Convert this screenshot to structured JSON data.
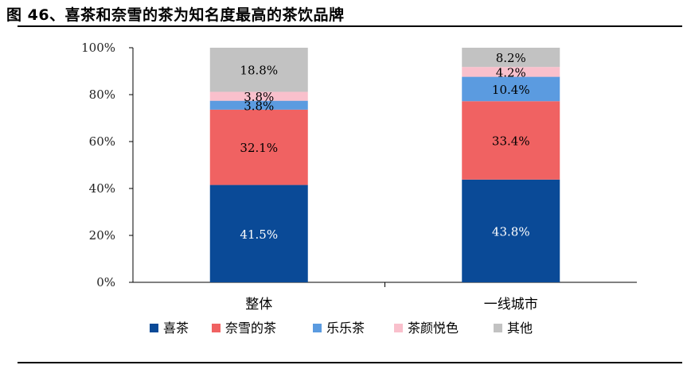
{
  "chart_data": {
    "type": "bar",
    "stacked": true,
    "title": "图 46、喜茶和奈雪的茶为知名度最高的茶饮品牌",
    "xlabel": "",
    "ylabel": "",
    "ylim": [
      0,
      100
    ],
    "y_ticks": [
      "0%",
      "20%",
      "40%",
      "60%",
      "80%",
      "100%"
    ],
    "categories": [
      "整体",
      "一线城市"
    ],
    "series": [
      {
        "name": "喜茶",
        "values": [
          41.5,
          43.8
        ],
        "labels": [
          "41.5%",
          "43.8%"
        ],
        "color": "#0a4a97",
        "label_color": "#ffffff"
      },
      {
        "name": "奈雪的茶",
        "values": [
          32.1,
          33.4
        ],
        "labels": [
          "32.1%",
          "33.4%"
        ],
        "color": "#f06262",
        "label_color": "#000000"
      },
      {
        "name": "乐乐茶",
        "values": [
          3.8,
          10.4
        ],
        "labels": [
          "3.8%",
          "10.4%"
        ],
        "color": "#5b9be0",
        "label_color": "#000000"
      },
      {
        "name": "茶颜悦色",
        "values": [
          3.8,
          4.2
        ],
        "labels": [
          "3.8%",
          "4.2%"
        ],
        "color": "#f9c0cc",
        "label_color": "#000000"
      },
      {
        "name": "其他",
        "values": [
          18.8,
          8.2
        ],
        "labels": [
          "18.8%",
          "8.2%"
        ],
        "color": "#c2c2c2",
        "label_color": "#000000"
      }
    ],
    "legend_position": "bottom",
    "grid": false
  }
}
